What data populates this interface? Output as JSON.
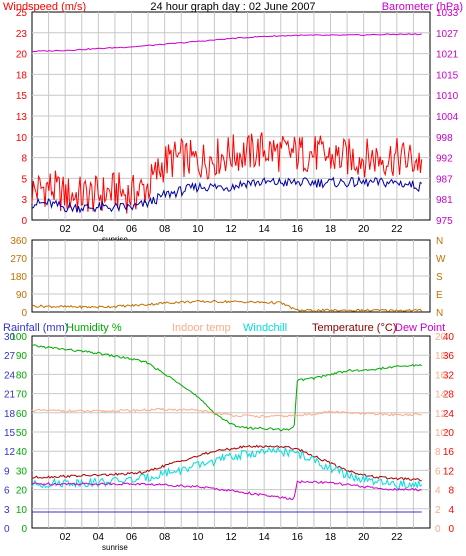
{
  "colors": {
    "frame": "#000000",
    "grid": "#c8c8c8",
    "red": "#ff0000",
    "windDark": "#0000aa",
    "magenta": "#cc00cc",
    "brown": "#c07000",
    "blue": "#3333cc",
    "green": "#00aa00",
    "salmon": "#ffaa88",
    "cyan": "#00dddd",
    "darkred": "#aa0000",
    "tempLabel": "#880000"
  },
  "chart_data": [
    {
      "type": "line",
      "title": "24 hour graph day : 02 June 2007",
      "left_axis_label": "Windspeed (m/s)",
      "right_axis_label": "Barometer (hPa)",
      "left_ticks": [
        "0",
        "3",
        "5",
        "8",
        "10",
        "13",
        "15",
        "18",
        "20",
        "23",
        "25"
      ],
      "right_ticks": [
        "975",
        "981",
        "987",
        "992",
        "998",
        "1004",
        "1010",
        "1015",
        "1021",
        "1027",
        "1033"
      ],
      "x_ticks": [
        "02",
        "04",
        "06",
        "08",
        "10",
        "12",
        "14",
        "16",
        "18",
        "20",
        "22"
      ],
      "x_sub_label": "sunrise",
      "left_range": [
        0,
        25
      ],
      "right_range": [
        975,
        1033
      ],
      "x_range": [
        0,
        24
      ],
      "series": [
        {
          "role": "gust",
          "color": "red",
          "axis": "left",
          "x": [
            0,
            1,
            2,
            3,
            4,
            5,
            6,
            7,
            8,
            9,
            10,
            11,
            12,
            13,
            14,
            15,
            16,
            17,
            18,
            19,
            20,
            21,
            22,
            23.5
          ],
          "y": [
            3.5,
            4,
            3,
            3,
            3,
            3.5,
            3,
            4,
            7,
            7.5,
            7,
            7.5,
            8,
            8,
            8.5,
            8,
            8,
            8,
            7.5,
            7.5,
            7.5,
            7.5,
            7.5,
            7
          ]
        },
        {
          "role": "average",
          "color": "windDark",
          "axis": "left",
          "x": [
            0,
            1,
            2,
            3,
            4,
            5,
            6,
            7,
            8,
            9,
            10,
            11,
            12,
            13,
            14,
            15,
            16,
            17,
            18,
            19,
            20,
            21,
            22,
            23.5
          ],
          "y": [
            2,
            2,
            1.5,
            1.5,
            1.5,
            1.5,
            1.5,
            2,
            3,
            3.5,
            4,
            4,
            4,
            4.5,
            4.5,
            4.5,
            4.5,
            4.5,
            4.5,
            4.5,
            4.5,
            4.5,
            4.5,
            4
          ]
        },
        {
          "role": "barometer",
          "color": "magenta",
          "axis": "right",
          "x": [
            0,
            2,
            4,
            6,
            8,
            10,
            12,
            14,
            16,
            18,
            20,
            22,
            23.5
          ],
          "y": [
            1022,
            1022.3,
            1022.8,
            1023.3,
            1024,
            1024.8,
            1025.6,
            1026.2,
            1026.5,
            1026.5,
            1026.6,
            1026.8,
            1026.8
          ]
        }
      ]
    },
    {
      "type": "line",
      "left_ticks": [
        "360",
        "270",
        "180",
        "90",
        "0"
      ],
      "right_ticks": [
        "N",
        "W",
        "S",
        "E",
        "N"
      ],
      "left_range": [
        0,
        360
      ],
      "x_range": [
        0,
        24
      ],
      "series": [
        {
          "role": "wind-direction",
          "color": "brown",
          "x": [
            0,
            1,
            2,
            3,
            4,
            5,
            6,
            7,
            8,
            9,
            10,
            11,
            12,
            13,
            14,
            15,
            16,
            17,
            18,
            19,
            20,
            21,
            22,
            23.5
          ],
          "y": [
            30,
            28,
            26,
            25,
            25,
            28,
            32,
            38,
            45,
            50,
            52,
            52,
            52,
            50,
            48,
            46,
            8,
            8,
            8,
            8,
            8,
            8,
            8,
            8
          ]
        }
      ]
    },
    {
      "type": "line",
      "legend": [
        "Rainfall (mm)",
        "Humidity %",
        "Indoor temp",
        "Windchill",
        "Temperature (°C)",
        "Dew Point"
      ],
      "left_ticks_rain": [
        "0",
        "3",
        "6",
        "9",
        "12",
        "15",
        "18",
        "21",
        "24",
        "27",
        "30"
      ],
      "left_ticks_humidity": [
        "0",
        "10",
        "20",
        "30",
        "40",
        "50",
        "60",
        "70",
        "80",
        "90",
        "100"
      ],
      "right_ticks_temp": [
        "0",
        "4",
        "8",
        "12",
        "16",
        "20",
        "24",
        "28",
        "32",
        "36",
        "40"
      ],
      "right_ticks_dew": [
        "0",
        "2",
        "4",
        "6",
        "8",
        "10",
        "12",
        "14",
        "16",
        "18",
        "20"
      ],
      "x_ticks": [
        "02",
        "04",
        "06",
        "08",
        "10",
        "12",
        "14",
        "16",
        "18",
        "20",
        "22"
      ],
      "x_sub_label": "sunrise",
      "x_range": [
        0,
        24
      ],
      "series": [
        {
          "role": "humidity",
          "color": "green",
          "scale": "humidity",
          "x": [
            0,
            2,
            4,
            6,
            7,
            8,
            9,
            10,
            11,
            12,
            13,
            14,
            15,
            15.8,
            16,
            17,
            18,
            19,
            20,
            21,
            22,
            23.5
          ],
          "y": [
            95,
            93,
            91,
            88,
            86,
            80,
            75,
            68,
            60,
            54,
            52,
            52,
            51,
            52,
            77,
            78,
            80,
            82,
            82,
            83,
            84,
            85
          ]
        },
        {
          "role": "indoor-temp",
          "color": "salmon",
          "scale": "temp",
          "x": [
            0,
            2,
            4,
            6,
            8,
            10,
            12,
            14,
            16,
            18,
            20,
            22,
            23.5
          ],
          "y": [
            24.5,
            24.4,
            24.3,
            24.5,
            24.7,
            24.5,
            23.5,
            23.2,
            23.4,
            24.2,
            23.8,
            23.6,
            23.6
          ]
        },
        {
          "role": "temperature",
          "color": "darkred",
          "scale": "temp",
          "x": [
            0,
            2,
            4,
            6,
            7,
            8,
            9,
            10,
            11,
            12,
            13,
            14,
            15,
            16,
            17,
            18,
            19,
            20,
            21,
            22,
            23.5
          ],
          "y": [
            10.5,
            10.8,
            11,
            11.3,
            11.8,
            13,
            14,
            15,
            16,
            16.5,
            17,
            17,
            17,
            16.5,
            15,
            13.5,
            12,
            11,
            10.5,
            10.3,
            10
          ]
        },
        {
          "role": "windchill",
          "color": "cyan",
          "scale": "temp",
          "x": [
            0,
            2,
            4,
            6,
            7,
            8,
            9,
            10,
            11,
            12,
            13,
            14,
            15,
            16,
            17,
            18,
            19,
            20,
            21,
            22,
            23.5
          ],
          "y": [
            9,
            9.5,
            9.5,
            10,
            10.5,
            11.5,
            12,
            13,
            14,
            14.8,
            15.5,
            15.8,
            16,
            15.5,
            14,
            12.5,
            11,
            10,
            9.3,
            9,
            9
          ]
        },
        {
          "role": "dew-point",
          "color": "magenta",
          "scale": "dew",
          "x": [
            0,
            2,
            4,
            6,
            8,
            10,
            12,
            14,
            15.8,
            16,
            17,
            18,
            19,
            20,
            21,
            22,
            23.5
          ],
          "y": [
            4.6,
            4.6,
            4.6,
            4.6,
            4.5,
            4.3,
            3.9,
            3.4,
            3.0,
            4.8,
            4.8,
            4.7,
            4.5,
            4.3,
            4.1,
            4.0,
            4.0
          ]
        },
        {
          "role": "rainfall",
          "color": "blue",
          "scale": "rain",
          "x": [
            0,
            23.5
          ],
          "y": [
            2.5,
            2.5
          ]
        }
      ]
    }
  ]
}
